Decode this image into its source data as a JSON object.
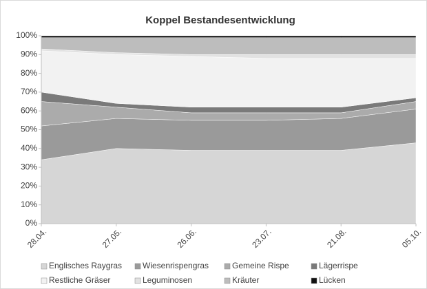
{
  "chart_data": {
    "type": "stacked-area",
    "title": "Koppel Bestandesentwicklung",
    "categories": [
      "28.04.",
      "27.05.",
      "26.06.",
      "23.07.",
      "21.08.",
      "05.10."
    ],
    "series": [
      {
        "name": "Englisches Raygras",
        "color": "#d6d6d6",
        "values": [
          34,
          40,
          39,
          39,
          39,
          43
        ]
      },
      {
        "name": "Wiesenrispengras",
        "color": "#9a9a9a",
        "values": [
          18,
          16,
          16,
          16,
          17,
          18
        ]
      },
      {
        "name": "Gemeine Rispe",
        "color": "#ababab",
        "values": [
          13,
          6,
          4,
          4,
          3,
          4
        ]
      },
      {
        "name": "Lägerrispe",
        "color": "#7a7a7a",
        "values": [
          5,
          2,
          3,
          3,
          3,
          2
        ]
      },
      {
        "name": "Restliche Gräser",
        "color": "#f2f2f2",
        "values": [
          22,
          26,
          27,
          26,
          26,
          21
        ]
      },
      {
        "name": "Leguminosen",
        "color": "#e2e2e2",
        "values": [
          1,
          1,
          1,
          2,
          2,
          2
        ]
      },
      {
        "name": "Kräuter",
        "color": "#bdbdbd",
        "values": [
          6,
          8,
          9,
          9,
          9,
          9
        ]
      },
      {
        "name": "Lücken",
        "color": "#111111",
        "values": [
          1,
          1,
          1,
          1,
          1,
          1
        ]
      }
    ],
    "ylim": [
      0,
      100
    ],
    "yticks": [
      {
        "value": 0,
        "label": "0%"
      },
      {
        "value": 10,
        "label": "10%"
      },
      {
        "value": 20,
        "label": "20%"
      },
      {
        "value": 30,
        "label": "30%"
      },
      {
        "value": 40,
        "label": "40%"
      },
      {
        "value": 50,
        "label": "50%"
      },
      {
        "value": 60,
        "label": "60%"
      },
      {
        "value": 70,
        "label": "70%"
      },
      {
        "value": 80,
        "label": "80%"
      },
      {
        "value": 90,
        "label": "90%"
      },
      {
        "value": 100,
        "label": "100%"
      }
    ],
    "grid": false,
    "legend": "bottom"
  }
}
